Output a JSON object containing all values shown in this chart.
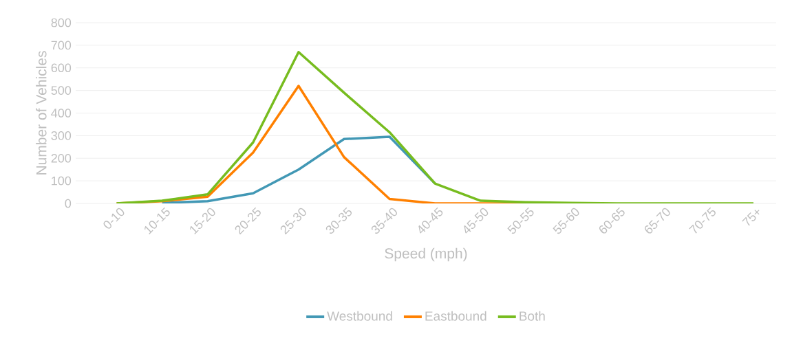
{
  "chart_data": {
    "type": "line",
    "xlabel": "Speed (mph)",
    "ylabel": "Number of Vehicles",
    "categories": [
      "0-10",
      "10-15",
      "15-20",
      "20-25",
      "25-30",
      "30-35",
      "35-40",
      "40-45",
      "45-50",
      "50-55",
      "55-60",
      "60-65",
      "65-70",
      "70-75",
      "75+"
    ],
    "series": [
      {
        "name": "Westbound",
        "color": "#4298b5",
        "values": [
          null,
          2,
          10,
          45,
          150,
          285,
          295,
          88,
          null,
          null,
          null,
          null,
          null,
          null,
          null
        ]
      },
      {
        "name": "Eastbound",
        "color": "#ff8000",
        "values": [
          0,
          10,
          30,
          225,
          520,
          205,
          20,
          0,
          0,
          0,
          0,
          null,
          null,
          null,
          null
        ]
      },
      {
        "name": "Both",
        "color": "#77bc1f",
        "values": [
          0,
          12,
          40,
          270,
          670,
          490,
          315,
          88,
          12,
          5,
          2,
          0,
          0,
          0,
          0
        ]
      }
    ],
    "ylim": [
      0,
      800
    ],
    "yticks": [
      0,
      100,
      200,
      300,
      400,
      500,
      600,
      700,
      800
    ],
    "grid": "y",
    "legend": "bottom",
    "marker": "none",
    "line_style": "solid"
  }
}
